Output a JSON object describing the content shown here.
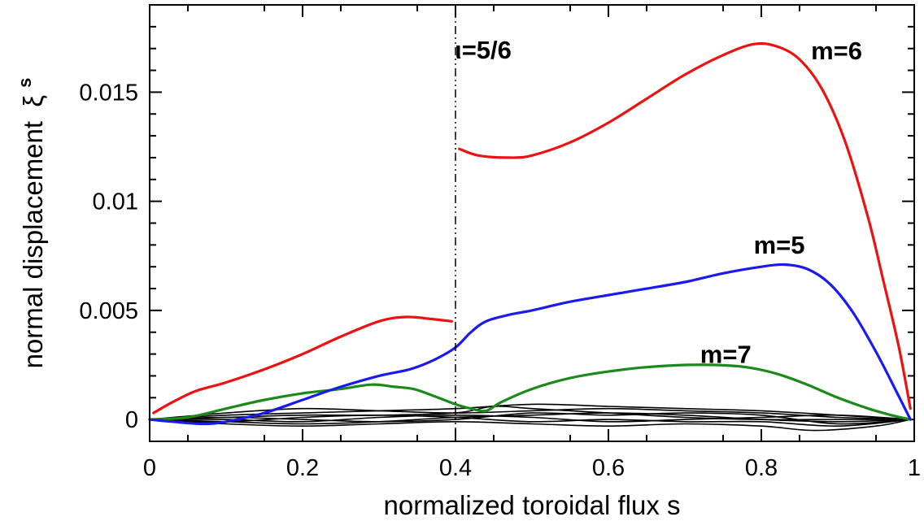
{
  "chart_data": {
    "type": "line",
    "xlabel": "normalized toroidal flux s",
    "ylabel": "normal displacement",
    "ylabel_symbol": "ξ",
    "ylabel_superscript": "s",
    "xlim": [
      0,
      1
    ],
    "ylim": [
      -0.001,
      0.019
    ],
    "grid": false,
    "legend": "none",
    "x_ticks": [
      0,
      0.2,
      0.4,
      0.6,
      0.8,
      1
    ],
    "x_tick_labels": [
      "0",
      "0.2",
      "0.4",
      "0.6",
      "0.8",
      "1"
    ],
    "y_ticks": [
      0,
      0.005,
      0.01,
      0.015
    ],
    "y_tick_labels": [
      "0",
      "0.005",
      "0.01",
      "0.015"
    ],
    "vline": {
      "x": 0.4,
      "style": "dash-dot",
      "label": "ι=5/6"
    },
    "series": [
      {
        "name": "m=6",
        "color": "#ee1111",
        "segments": [
          [
            [
              0.005,
              0.0003
            ],
            [
              0.03,
              0.0008
            ],
            [
              0.06,
              0.0013
            ],
            [
              0.1,
              0.0017
            ],
            [
              0.15,
              0.0023
            ],
            [
              0.2,
              0.003
            ],
            [
              0.25,
              0.0038
            ],
            [
              0.3,
              0.0045
            ],
            [
              0.335,
              0.0047
            ],
            [
              0.37,
              0.0046
            ],
            [
              0.395,
              0.0045
            ]
          ],
          [
            [
              0.405,
              0.0124
            ],
            [
              0.43,
              0.0121
            ],
            [
              0.47,
              0.012
            ],
            [
              0.5,
              0.0121
            ],
            [
              0.55,
              0.0127
            ],
            [
              0.6,
              0.0136
            ],
            [
              0.65,
              0.0147
            ],
            [
              0.7,
              0.0158
            ],
            [
              0.75,
              0.0167
            ],
            [
              0.79,
              0.0172
            ],
            [
              0.82,
              0.0171
            ],
            [
              0.85,
              0.0165
            ],
            [
              0.88,
              0.0151
            ],
            [
              0.91,
              0.0127
            ],
            [
              0.94,
              0.0092
            ],
            [
              0.96,
              0.0063
            ],
            [
              0.98,
              0.0033
            ],
            [
              0.995,
              0.0005
            ]
          ]
        ]
      },
      {
        "name": "m=5",
        "color": "#1a1aee",
        "segments": [
          [
            [
              0.0,
              0.0
            ],
            [
              0.03,
              -0.0001
            ],
            [
              0.07,
              -0.0002
            ],
            [
              0.1,
              -0.0001
            ],
            [
              0.15,
              0.0003
            ],
            [
              0.2,
              0.0009
            ],
            [
              0.25,
              0.0015
            ],
            [
              0.3,
              0.002
            ],
            [
              0.34,
              0.0023
            ],
            [
              0.37,
              0.0027
            ],
            [
              0.4,
              0.0033
            ],
            [
              0.42,
              0.004
            ],
            [
              0.44,
              0.0045
            ],
            [
              0.47,
              0.0048
            ],
            [
              0.5,
              0.005
            ],
            [
              0.55,
              0.0054
            ],
            [
              0.6,
              0.0057
            ],
            [
              0.65,
              0.006
            ],
            [
              0.7,
              0.0063
            ],
            [
              0.75,
              0.0067
            ],
            [
              0.8,
              0.007
            ],
            [
              0.83,
              0.0071
            ],
            [
              0.86,
              0.0069
            ],
            [
              0.89,
              0.0062
            ],
            [
              0.92,
              0.0049
            ],
            [
              0.95,
              0.0031
            ],
            [
              0.975,
              0.0014
            ],
            [
              0.995,
              0.0
            ]
          ]
        ]
      },
      {
        "name": "m=7",
        "color": "#1a8a1a",
        "segments": [
          [
            [
              0.0,
              0.0
            ],
            [
              0.05,
              0.0001
            ],
            [
              0.1,
              0.0005
            ],
            [
              0.15,
              0.0009
            ],
            [
              0.2,
              0.0012
            ],
            [
              0.25,
              0.0014
            ],
            [
              0.29,
              0.0016
            ],
            [
              0.32,
              0.0015
            ],
            [
              0.345,
              0.0014
            ],
            [
              0.37,
              0.0011
            ],
            [
              0.4,
              0.0007
            ],
            [
              0.42,
              0.0005
            ],
            [
              0.44,
              0.0004
            ],
            [
              0.46,
              0.0008
            ],
            [
              0.5,
              0.0014
            ],
            [
              0.55,
              0.0019
            ],
            [
              0.6,
              0.0022
            ],
            [
              0.65,
              0.0024
            ],
            [
              0.7,
              0.0025
            ],
            [
              0.74,
              0.0025
            ],
            [
              0.78,
              0.0024
            ],
            [
              0.82,
              0.0021
            ],
            [
              0.86,
              0.0016
            ],
            [
              0.9,
              0.001
            ],
            [
              0.94,
              0.0005
            ],
            [
              0.97,
              0.0002
            ],
            [
              0.995,
              0.0
            ]
          ]
        ]
      },
      {
        "name": "",
        "color": "#000000",
        "segments": [
          [
            [
              0.0,
              0.0
            ],
            [
              0.1,
              0.0002
            ],
            [
              0.2,
              0.0003
            ],
            [
              0.3,
              0.0004
            ],
            [
              0.4,
              0.0005
            ],
            [
              0.5,
              0.0007
            ],
            [
              0.6,
              0.0006
            ],
            [
              0.7,
              0.0005
            ],
            [
              0.8,
              0.0004
            ],
            [
              0.9,
              0.0002
            ],
            [
              0.995,
              0.0
            ]
          ],
          [
            [
              0.0,
              0.0
            ],
            [
              0.1,
              0.0001
            ],
            [
              0.2,
              0.0002
            ],
            [
              0.3,
              0.0002
            ],
            [
              0.4,
              0.0003
            ],
            [
              0.45,
              0.0006
            ],
            [
              0.5,
              0.0005
            ],
            [
              0.6,
              0.0003
            ],
            [
              0.7,
              0.0001
            ],
            [
              0.8,
              0.0
            ],
            [
              0.9,
              0.0
            ],
            [
              0.995,
              0.0
            ]
          ],
          [
            [
              0.0,
              0.0
            ],
            [
              0.1,
              -0.0001
            ],
            [
              0.2,
              -0.0002
            ],
            [
              0.3,
              -0.0001
            ],
            [
              0.4,
              0.0001
            ],
            [
              0.5,
              0.0002
            ],
            [
              0.6,
              0.0003
            ],
            [
              0.7,
              0.0002
            ],
            [
              0.8,
              0.0
            ],
            [
              0.9,
              -0.0001
            ],
            [
              0.995,
              0.0
            ]
          ],
          [
            [
              0.0,
              0.0
            ],
            [
              0.1,
              -0.0002
            ],
            [
              0.2,
              -0.0003
            ],
            [
              0.3,
              -0.0002
            ],
            [
              0.4,
              -0.0001
            ],
            [
              0.5,
              -0.0002
            ],
            [
              0.6,
              -0.0003
            ],
            [
              0.7,
              -0.0002
            ],
            [
              0.8,
              -0.0003
            ],
            [
              0.87,
              -0.0005
            ],
            [
              0.95,
              -0.0003
            ],
            [
              0.995,
              0.0
            ]
          ],
          [
            [
              0.0,
              0.0
            ],
            [
              0.1,
              0.0003
            ],
            [
              0.2,
              0.0005
            ],
            [
              0.3,
              0.0004
            ],
            [
              0.4,
              0.0003
            ],
            [
              0.5,
              0.0004
            ],
            [
              0.6,
              0.0005
            ],
            [
              0.7,
              0.0004
            ],
            [
              0.8,
              0.0003
            ],
            [
              0.9,
              0.0001
            ],
            [
              0.995,
              0.0
            ]
          ],
          [
            [
              0.0,
              0.0
            ],
            [
              0.1,
              0.0
            ],
            [
              0.2,
              -0.0001
            ],
            [
              0.3,
              0.0001
            ],
            [
              0.4,
              0.0002
            ],
            [
              0.5,
              0.0001
            ],
            [
              0.6,
              -0.0001
            ],
            [
              0.7,
              0.0
            ],
            [
              0.8,
              0.0001
            ],
            [
              0.9,
              0.0002
            ],
            [
              0.995,
              0.0
            ]
          ],
          [
            [
              0.0,
              0.0
            ],
            [
              0.1,
              0.0001
            ],
            [
              0.2,
              0.0
            ],
            [
              0.3,
              -0.0001
            ],
            [
              0.4,
              0.0
            ],
            [
              0.5,
              0.0003
            ],
            [
              0.6,
              0.0002
            ],
            [
              0.7,
              0.0003
            ],
            [
              0.8,
              0.0002
            ],
            [
              0.9,
              -0.0002
            ],
            [
              0.995,
              0.0
            ]
          ],
          [
            [
              0.0,
              0.0
            ],
            [
              0.1,
              -0.0001
            ],
            [
              0.2,
              0.0001
            ],
            [
              0.3,
              0.0002
            ],
            [
              0.4,
              0.0001
            ],
            [
              0.5,
              -0.0001
            ],
            [
              0.6,
              0.0
            ],
            [
              0.7,
              -0.0001
            ],
            [
              0.8,
              -0.0001
            ],
            [
              0.9,
              -0.0003
            ],
            [
              0.995,
              0.0
            ]
          ]
        ]
      }
    ],
    "annotations": [
      {
        "text": "m=6",
        "x": 0.865,
        "y": 0.0165
      },
      {
        "text": "m=5",
        "x": 0.79,
        "y": 0.0076
      },
      {
        "text": "m=7",
        "x": 0.72,
        "y": 0.0026
      }
    ]
  }
}
